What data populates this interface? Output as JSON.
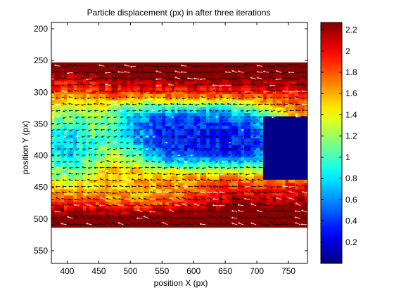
{
  "chart_data": {
    "type": "heatmap",
    "title": "Particle displacement (px) in after three iterations",
    "xlabel": "position X (px)",
    "ylabel": "position Y (px)",
    "xlim": [
      375,
      780
    ],
    "ylim": [
      570,
      190
    ],
    "xticks": [
      400,
      450,
      500,
      550,
      600,
      650,
      700,
      750
    ],
    "yticks": [
      200,
      250,
      300,
      350,
      400,
      450,
      500,
      550
    ],
    "data_extent": {
      "x": [
        375,
        780
      ],
      "y": [
        253,
        510
      ]
    },
    "colorbar": {
      "colormap": "jet",
      "clim": [
        0,
        2.27
      ],
      "ticks": [
        0.2,
        0.4,
        0.6,
        0.8,
        1,
        1.2,
        1.4,
        1.6,
        1.8,
        2,
        2.2
      ]
    },
    "overlay": "displacement vector field (quiver), black and white arrows"
  },
  "colors": {
    "axes": "#000000",
    "background": "#ffffff",
    "arrows_dark": "#000000",
    "arrows_light": "#ffffff"
  }
}
